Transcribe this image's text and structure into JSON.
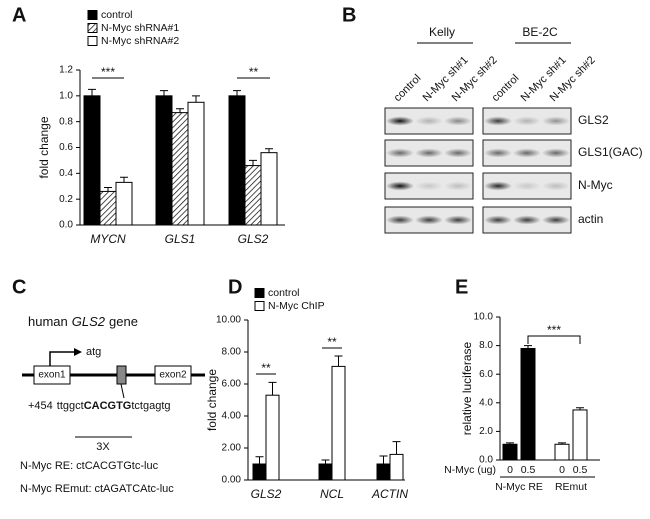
{
  "panel_labels": [
    "A",
    "B",
    "C",
    "D",
    "E"
  ],
  "chart_data": [
    {
      "type": "bar",
      "y_label": "fold change",
      "categories": [
        "MYCN",
        "GLS1",
        "GLS2"
      ],
      "series": [
        {
          "name": "control",
          "color": "#000000",
          "values": [
            1.0,
            1.0,
            1.0
          ],
          "errors": [
            0.05,
            0.04,
            0.04
          ]
        },
        {
          "name": "N-Myc shRNA#1",
          "color": "#ffffff",
          "pattern": "hatch",
          "values": [
            0.26,
            0.87,
            0.46
          ],
          "errors": [
            0.03,
            0.03,
            0.04
          ]
        },
        {
          "name": "N-Myc shRNA#2",
          "color": "#ffffff",
          "values": [
            0.33,
            0.95,
            0.56
          ],
          "errors": [
            0.04,
            0.05,
            0.03
          ]
        }
      ],
      "ylim": [
        0,
        1.2
      ],
      "yticks": [
        {
          "value": 0,
          "label": "0.0"
        },
        0.2,
        0.4,
        0.6,
        0.8,
        {
          "value": 1,
          "label": "1.0"
        },
        1.2
      ],
      "annotations": [
        "***",
        "**"
      ],
      "legend": "top-left"
    },
    {
      "type": "bar",
      "y_label": "fold change",
      "categories": [
        "GLS2",
        "NCL",
        "ACTIN"
      ],
      "series": [
        {
          "name": "control",
          "color": "#000000",
          "values": [
            1.0,
            1.0,
            1.0
          ],
          "errors": [
            0.45,
            0.25,
            0.5
          ]
        },
        {
          "name": "N-Myc ChIP",
          "color": "#ffffff",
          "values": [
            5.3,
            7.1,
            1.6
          ],
          "errors": [
            0.8,
            0.65,
            0.8
          ]
        }
      ],
      "ylim": [
        0,
        10
      ],
      "yticks": [
        {
          "value": 0,
          "label": "0.00"
        },
        {
          "value": 2,
          "label": "2.00"
        },
        {
          "value": 4,
          "label": "4.00"
        },
        {
          "value": 6,
          "label": "6.00"
        },
        {
          "value": 8,
          "label": "8.00"
        },
        {
          "value": 10,
          "label": "10.00"
        }
      ],
      "annotations": [
        "**",
        "**"
      ],
      "legend": "top-left"
    },
    {
      "type": "bar",
      "y_label": "relative luciferase",
      "x_label": "N-Myc (ug)",
      "categories": [
        "0",
        "0.5",
        "0",
        "0.5"
      ],
      "group_labels": [
        "N-Myc RE",
        "REmut"
      ],
      "values": [
        1.1,
        7.8,
        1.1,
        3.5
      ],
      "errors": [
        0.1,
        0.2,
        0.1,
        0.15
      ],
      "colors": [
        "#000000",
        "#000000",
        "#ffffff",
        "#ffffff"
      ],
      "ylim": [
        0,
        10
      ],
      "yticks": [
        {
          "value": 0,
          "label": "0.0"
        },
        {
          "value": 2,
          "label": "2.0"
        },
        {
          "value": 4,
          "label": "4.0"
        },
        {
          "value": 6,
          "label": "6.0"
        },
        {
          "value": 8,
          "label": "8.0"
        },
        {
          "value": 10,
          "label": "10.0"
        }
      ],
      "annotations": [
        "***"
      ]
    }
  ],
  "blot": {
    "groups": [
      {
        "name": "Kelly",
        "lanes": [
          "control",
          "N-Myc sh#1",
          "N-Myc sh#2"
        ]
      },
      {
        "name": "BE-2C",
        "lanes": [
          "control",
          "N-Myc sh#1",
          "N-Myc sh#2"
        ]
      }
    ],
    "rows": [
      "GLS2",
      "GLS1(GAC)",
      "N-Myc",
      "actin"
    ]
  },
  "gene_diagram": {
    "title": [
      "human",
      "GLS2",
      "gene"
    ],
    "exons": [
      "exon1",
      "exon2"
    ],
    "start": "atg",
    "site": "+454",
    "sequence": [
      "ttggct",
      "CACGTG",
      "tctgagtg"
    ],
    "repeat": "3X",
    "constructs": [
      {
        "name": "N-Myc RE:",
        "seq": "ctCACGTGtc-luc"
      },
      {
        "name": "N-Myc REmut:",
        "seq": "ctAGATCAtc-luc"
      }
    ]
  }
}
